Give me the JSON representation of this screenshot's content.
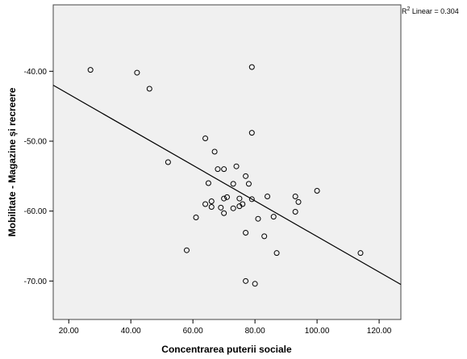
{
  "chart_data": {
    "type": "scatter",
    "title": "",
    "xlabel": "Concentrarea puterii sociale",
    "ylabel": "Mobilitate - Magazine și recreere",
    "xlim": [
      15,
      127
    ],
    "ylim": [
      -75.5,
      -30.5
    ],
    "x_ticks": [
      20,
      40,
      60,
      80,
      100,
      120
    ],
    "y_ticks": [
      -40,
      -50,
      -60,
      -70
    ],
    "x_tick_labels": [
      "20.00",
      "40.00",
      "60.00",
      "80.00",
      "100.00",
      "120.00"
    ],
    "y_tick_labels": [
      "-40.00",
      "-50.00",
      "-60.00",
      "-70.00"
    ],
    "grid": false,
    "plot_background": "#f0f0f0",
    "marker_color": "#000000",
    "fit_line": {
      "label": "R² Linear = 0.304",
      "r2_prefix": "R",
      "r2_sup": "2",
      "r2_suffix": " Linear = 0.304",
      "points": [
        [
          15,
          -42.0
        ],
        [
          127,
          -70.5
        ]
      ]
    },
    "points": [
      [
        27,
        -39.8
      ],
      [
        42,
        -40.2
      ],
      [
        46,
        -42.5
      ],
      [
        79,
        -39.4
      ],
      [
        64,
        -49.6
      ],
      [
        79,
        -48.8
      ],
      [
        67,
        -51.5
      ],
      [
        52,
        -53.0
      ],
      [
        68,
        -54.0
      ],
      [
        70,
        -54.0
      ],
      [
        74,
        -53.6
      ],
      [
        77,
        -55.0
      ],
      [
        65,
        -56.0
      ],
      [
        73,
        -56.1
      ],
      [
        78,
        -56.1
      ],
      [
        100,
        -57.1
      ],
      [
        84,
        -57.9
      ],
      [
        93,
        -57.9
      ],
      [
        71,
        -58.0
      ],
      [
        70,
        -58.2
      ],
      [
        75,
        -58.2
      ],
      [
        79,
        -58.3
      ],
      [
        66,
        -58.6
      ],
      [
        94,
        -58.7
      ],
      [
        64,
        -59.0
      ],
      [
        76,
        -59.0
      ],
      [
        75,
        -59.3
      ],
      [
        66,
        -59.4
      ],
      [
        69,
        -59.5
      ],
      [
        73,
        -59.6
      ],
      [
        70,
        -60.3
      ],
      [
        93,
        -60.1
      ],
      [
        61,
        -60.9
      ],
      [
        86,
        -60.8
      ],
      [
        81,
        -61.1
      ],
      [
        77,
        -63.1
      ],
      [
        83,
        -63.6
      ],
      [
        58,
        -65.6
      ],
      [
        87,
        -66.0
      ],
      [
        114,
        -66.0
      ],
      [
        77,
        -70.0
      ],
      [
        80,
        -70.4
      ]
    ]
  }
}
